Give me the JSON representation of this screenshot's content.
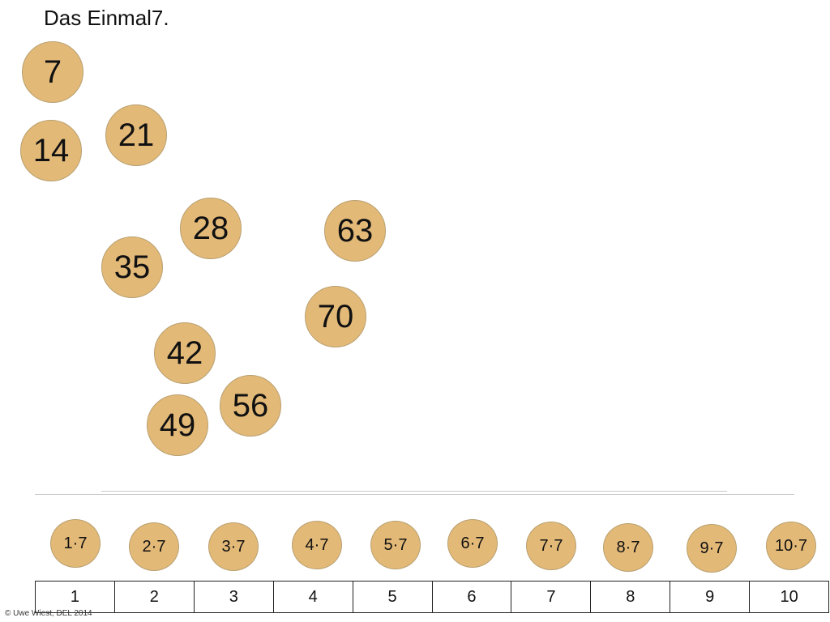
{
  "title": "Das Einmal7.",
  "colors": {
    "coin": "#e3b978",
    "coin_border": "#b8a070"
  },
  "multiples": [
    "7",
    "14",
    "21",
    "28",
    "35",
    "42",
    "49",
    "56",
    "63",
    "70"
  ],
  "expressions": [
    "1·7",
    "2·7",
    "3·7",
    "4·7",
    "5·7",
    "6·7",
    "7·7",
    "8·7",
    "9·7",
    "10·7"
  ],
  "number_line": [
    "1",
    "2",
    "3",
    "4",
    "5",
    "6",
    "7",
    "8",
    "9",
    "10"
  ],
  "copyright": "© Uwe Wiest, DEL 2014"
}
